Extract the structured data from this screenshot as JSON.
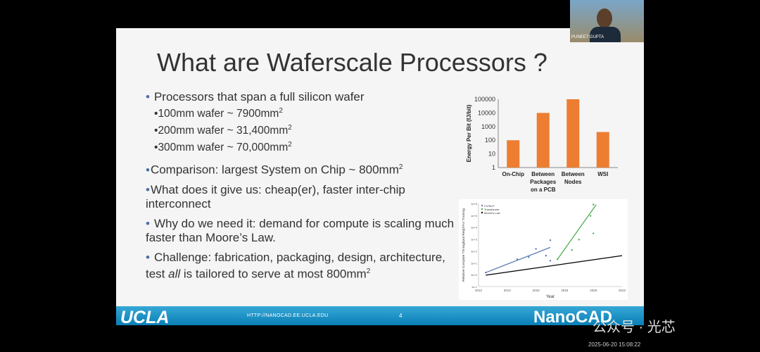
{
  "slide": {
    "title": "What are Waferscale Processors ?",
    "bullets": [
      {
        "text": "Processors that span a full silicon wafer",
        "subs": [
          {
            "text": "100mm wafer ~ 7900mm",
            "sup": "2"
          },
          {
            "text": "200mm wafer ~ 31,400mm",
            "sup": "2"
          },
          {
            "text": "300mm wafer ~ 70,000mm",
            "sup": "2"
          }
        ]
      },
      {
        "text": "Comparison: largest System on Chip ~ 800mm",
        "sup": "2"
      },
      {
        "text": "What does it give us: cheap(er), faster inter-chip interconnect"
      },
      {
        "text": "Why do we need it: demand for compute is scaling much faster than Moore’s Law."
      },
      {
        "text_a": "Challenge: fabrication, packaging, design, architecture, test ",
        "em": "all",
        "text_b": " is tailored to serve at most 800mm",
        "sup": "2"
      }
    ],
    "footer": {
      "logo": "UCLA",
      "url": "HTTP://NANOCAD.EE.UCLA.EDU",
      "page": "4",
      "brand": "NanoCAD"
    }
  },
  "chart_data": [
    {
      "type": "bar",
      "ylabel": "Energy Per Bit (fJ/bit)",
      "yscale": "log",
      "ylim": [
        1,
        100000
      ],
      "yticks": [
        "1",
        "10",
        "100",
        "1000",
        "10000",
        "100000"
      ],
      "categories": [
        "On-Chip",
        "Between Packages on a PCB",
        "Between Nodes",
        "WSI"
      ],
      "category_lines": [
        [
          "On-Chip"
        ],
        [
          "Between",
          "Packages",
          "on a PCB"
        ],
        [
          "Between",
          "Nodes"
        ],
        [
          "WSI"
        ]
      ],
      "values": [
        100,
        10000,
        100000,
        400
      ],
      "color": "#ed7d31"
    },
    {
      "type": "scatter",
      "xlabel": "Year",
      "ylabel": "Relative Compute Throughput Reqd For Training",
      "xlim": [
        2012,
        2022
      ],
      "xticks": [
        "2012",
        "2014",
        "2016",
        "2018",
        "2020",
        "2022"
      ],
      "yticks": [
        "1e-1",
        "1e+0",
        "1e+1",
        "1e+2",
        "1e+3",
        "1e+4",
        "1e+5",
        "1e+6"
      ],
      "legend": [
        "CV/NLP",
        "Transformer",
        "Moore’s Law"
      ],
      "series": [
        {
          "name": "CV/NLP",
          "color": "#5b7bb3",
          "points": [
            [
              2012.5,
              1.5
            ],
            [
              2014.7,
              20
            ],
            [
              2015.5,
              30
            ],
            [
              2016,
              150
            ],
            [
              2016.7,
              40
            ],
            [
              2017,
              800
            ],
            [
              2017,
              15
            ]
          ]
        },
        {
          "name": "Transformer",
          "color": "#4caf50",
          "points": [
            [
              2017.5,
              20
            ],
            [
              2018.5,
              120
            ],
            [
              2019,
              900
            ],
            [
              2019.8,
              90000
            ],
            [
              2020,
              800000
            ],
            [
              2020,
              3000
            ]
          ]
        },
        {
          "name": "Moore’s Law",
          "color": "#000000",
          "points": []
        }
      ],
      "trendlines": [
        {
          "name": "CV/NLP",
          "x": [
            2012.5,
            2017
          ],
          "y": [
            1.5,
            200
          ]
        },
        {
          "name": "Transformer",
          "x": [
            2017.5,
            2020.2
          ],
          "y": [
            20,
            800000
          ]
        },
        {
          "name": "Moore’s Law",
          "x": [
            2012.5,
            2022
          ],
          "y": [
            0.9,
            40
          ]
        }
      ]
    }
  ],
  "video": {
    "name": "PUNEET GUPTA"
  },
  "watermark": "公众号 · 光芯",
  "timestamp": "2025-06-20 15:08:22"
}
